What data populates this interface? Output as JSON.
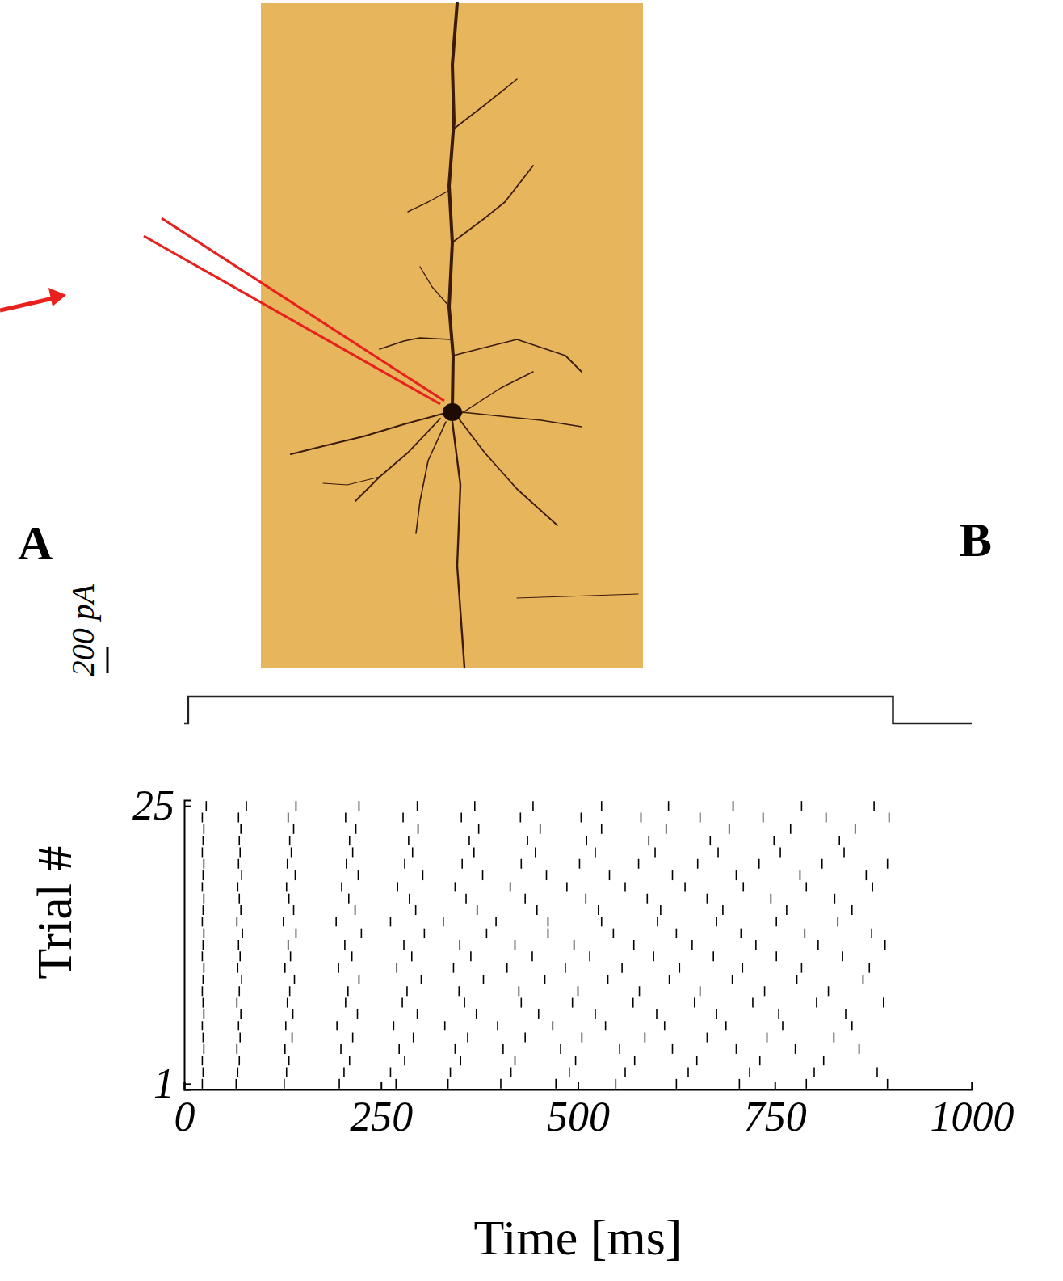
{
  "chart_data": {
    "type": "raster",
    "panel_labels": [
      "A",
      "B"
    ],
    "x_label": "Time [ms]",
    "y_label": "Trial #",
    "xlim": [
      0,
      1000
    ],
    "xticks": [
      0,
      250,
      500,
      750,
      1000
    ],
    "ylim": [
      0.5,
      25.5
    ],
    "yticks": [
      1,
      25
    ],
    "color": "#000000",
    "trials": [
      1,
      2,
      3,
      4,
      5,
      6,
      7,
      8,
      9,
      10,
      11,
      12,
      13,
      14,
      15,
      16,
      17,
      18,
      19,
      20,
      21,
      22,
      23,
      24,
      25
    ],
    "spike_times": [
      [
        23,
        66,
        127,
        197,
        269,
        335,
        402,
        472,
        548,
        625,
        705,
        790,
        893
      ],
      [
        24,
        68,
        130,
        203,
        262,
        338,
        415,
        489,
        560,
        640,
        718,
        800,
        880
      ],
      [
        23,
        70,
        133,
        210,
        280,
        351,
        420,
        497,
        572,
        651,
        731,
        812
      ],
      [
        25,
        67,
        128,
        199,
        273,
        344,
        405,
        478,
        553,
        620,
        701,
        776,
        857
      ],
      [
        24,
        71,
        137,
        214,
        291,
        360,
        433,
        505,
        585,
        664,
        740,
        825
      ],
      [
        23,
        69,
        129,
        194,
        266,
        331,
        398,
        468,
        535,
        610,
        688,
        760,
        848
      ],
      [
        25,
        72,
        138,
        220,
        296,
        371,
        450,
        522,
        600,
        676,
        755,
        840
      ],
      [
        24,
        67,
        131,
        205,
        277,
        356,
        428,
        493,
        570,
        648,
        722,
        803,
        888
      ],
      [
        23,
        70,
        134,
        208,
        283,
        349,
        425,
        500,
        578,
        655,
        737,
        818
      ],
      [
        24,
        73,
        140,
        222,
        301,
        380,
        458,
        538,
        616,
        696,
        778,
        862
      ],
      [
        25,
        68,
        128,
        196,
        270,
        342,
        410,
        484,
        556,
        629,
        709,
        784,
        870
      ],
      [
        23,
        71,
        135,
        213,
        289,
        364,
        442,
        515,
        596,
        672,
        752,
        836
      ],
      [
        24,
        69,
        132,
        204,
        279,
        350,
        420,
        495,
        571,
        645,
        726,
        805,
        890
      ],
      [
        25,
        74,
        142,
        225,
        305,
        384,
        462,
        545,
        625,
        707,
        788,
        873
      ],
      [
        23,
        67,
        126,
        193,
        262,
        329,
        396,
        462,
        530,
        601,
        676,
        752,
        830
      ],
      [
        24,
        72,
        139,
        217,
        294,
        372,
        448,
        526,
        605,
        684,
        765,
        848
      ],
      [
        25,
        70,
        133,
        209,
        286,
        358,
        433,
        510,
        588,
        664,
        745,
        826
      ],
      [
        23,
        68,
        130,
        200,
        271,
        344,
        414,
        486,
        560,
        636,
        710,
        790,
        874
      ],
      [
        24,
        73,
        141,
        221,
        303,
        379,
        460,
        540,
        620,
        701,
        782,
        866
      ],
      [
        25,
        69,
        131,
        206,
        280,
        353,
        428,
        502,
        577,
        652,
        730,
        810,
        893
      ],
      [
        23,
        71,
        136,
        214,
        290,
        368,
        446,
        522,
        598,
        678,
        757,
        838
      ],
      [
        24,
        70,
        134,
        210,
        285,
        362,
        436,
        511,
        590,
        668,
        749,
        832
      ],
      [
        25,
        72,
        139,
        218,
        297,
        374,
        452,
        530,
        612,
        692,
        770,
        852
      ],
      [
        23,
        69,
        132,
        205,
        278,
        352,
        427,
        504,
        580,
        655,
        735,
        815,
        895
      ],
      [
        28,
        79,
        142,
        222,
        296,
        369,
        443,
        530,
        615,
        697,
        784,
        876
      ]
    ],
    "stimulus": {
      "x": [
        0,
        5,
        5,
        900,
        900,
        1000
      ],
      "values": [
        0,
        0,
        200,
        200,
        0,
        0
      ]
    },
    "scale_bar": {
      "value": 200,
      "label": "200 pA"
    }
  }
}
